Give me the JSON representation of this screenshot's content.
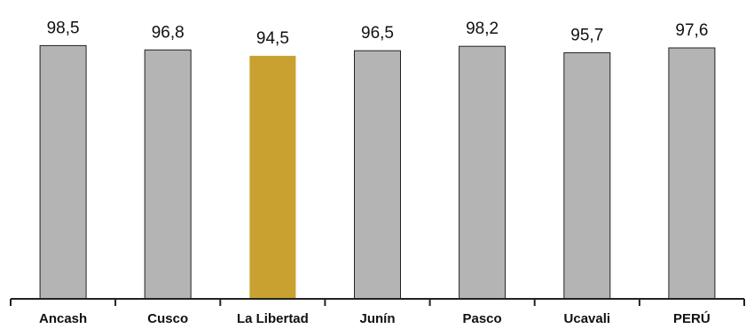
{
  "chart_data": {
    "type": "bar",
    "categories": [
      "Ancash",
      "Cusco",
      "La Libertad",
      "Junín",
      "Pasco",
      "Ucavali",
      "PERÚ"
    ],
    "values": [
      98.5,
      96.8,
      94.5,
      96.5,
      98.2,
      95.7,
      97.6
    ],
    "value_labels": [
      "98,5",
      "96,8",
      "94,5",
      "96,5",
      "98,2",
      "95,7",
      "97,6"
    ],
    "ylim": [
      0,
      100
    ],
    "grid": false,
    "legend": "none",
    "highlight_index": 2,
    "colors": {
      "bar": "#b4b4b4",
      "highlight": "#c9a130",
      "outline": "#222222",
      "axis": "#222222"
    }
  }
}
